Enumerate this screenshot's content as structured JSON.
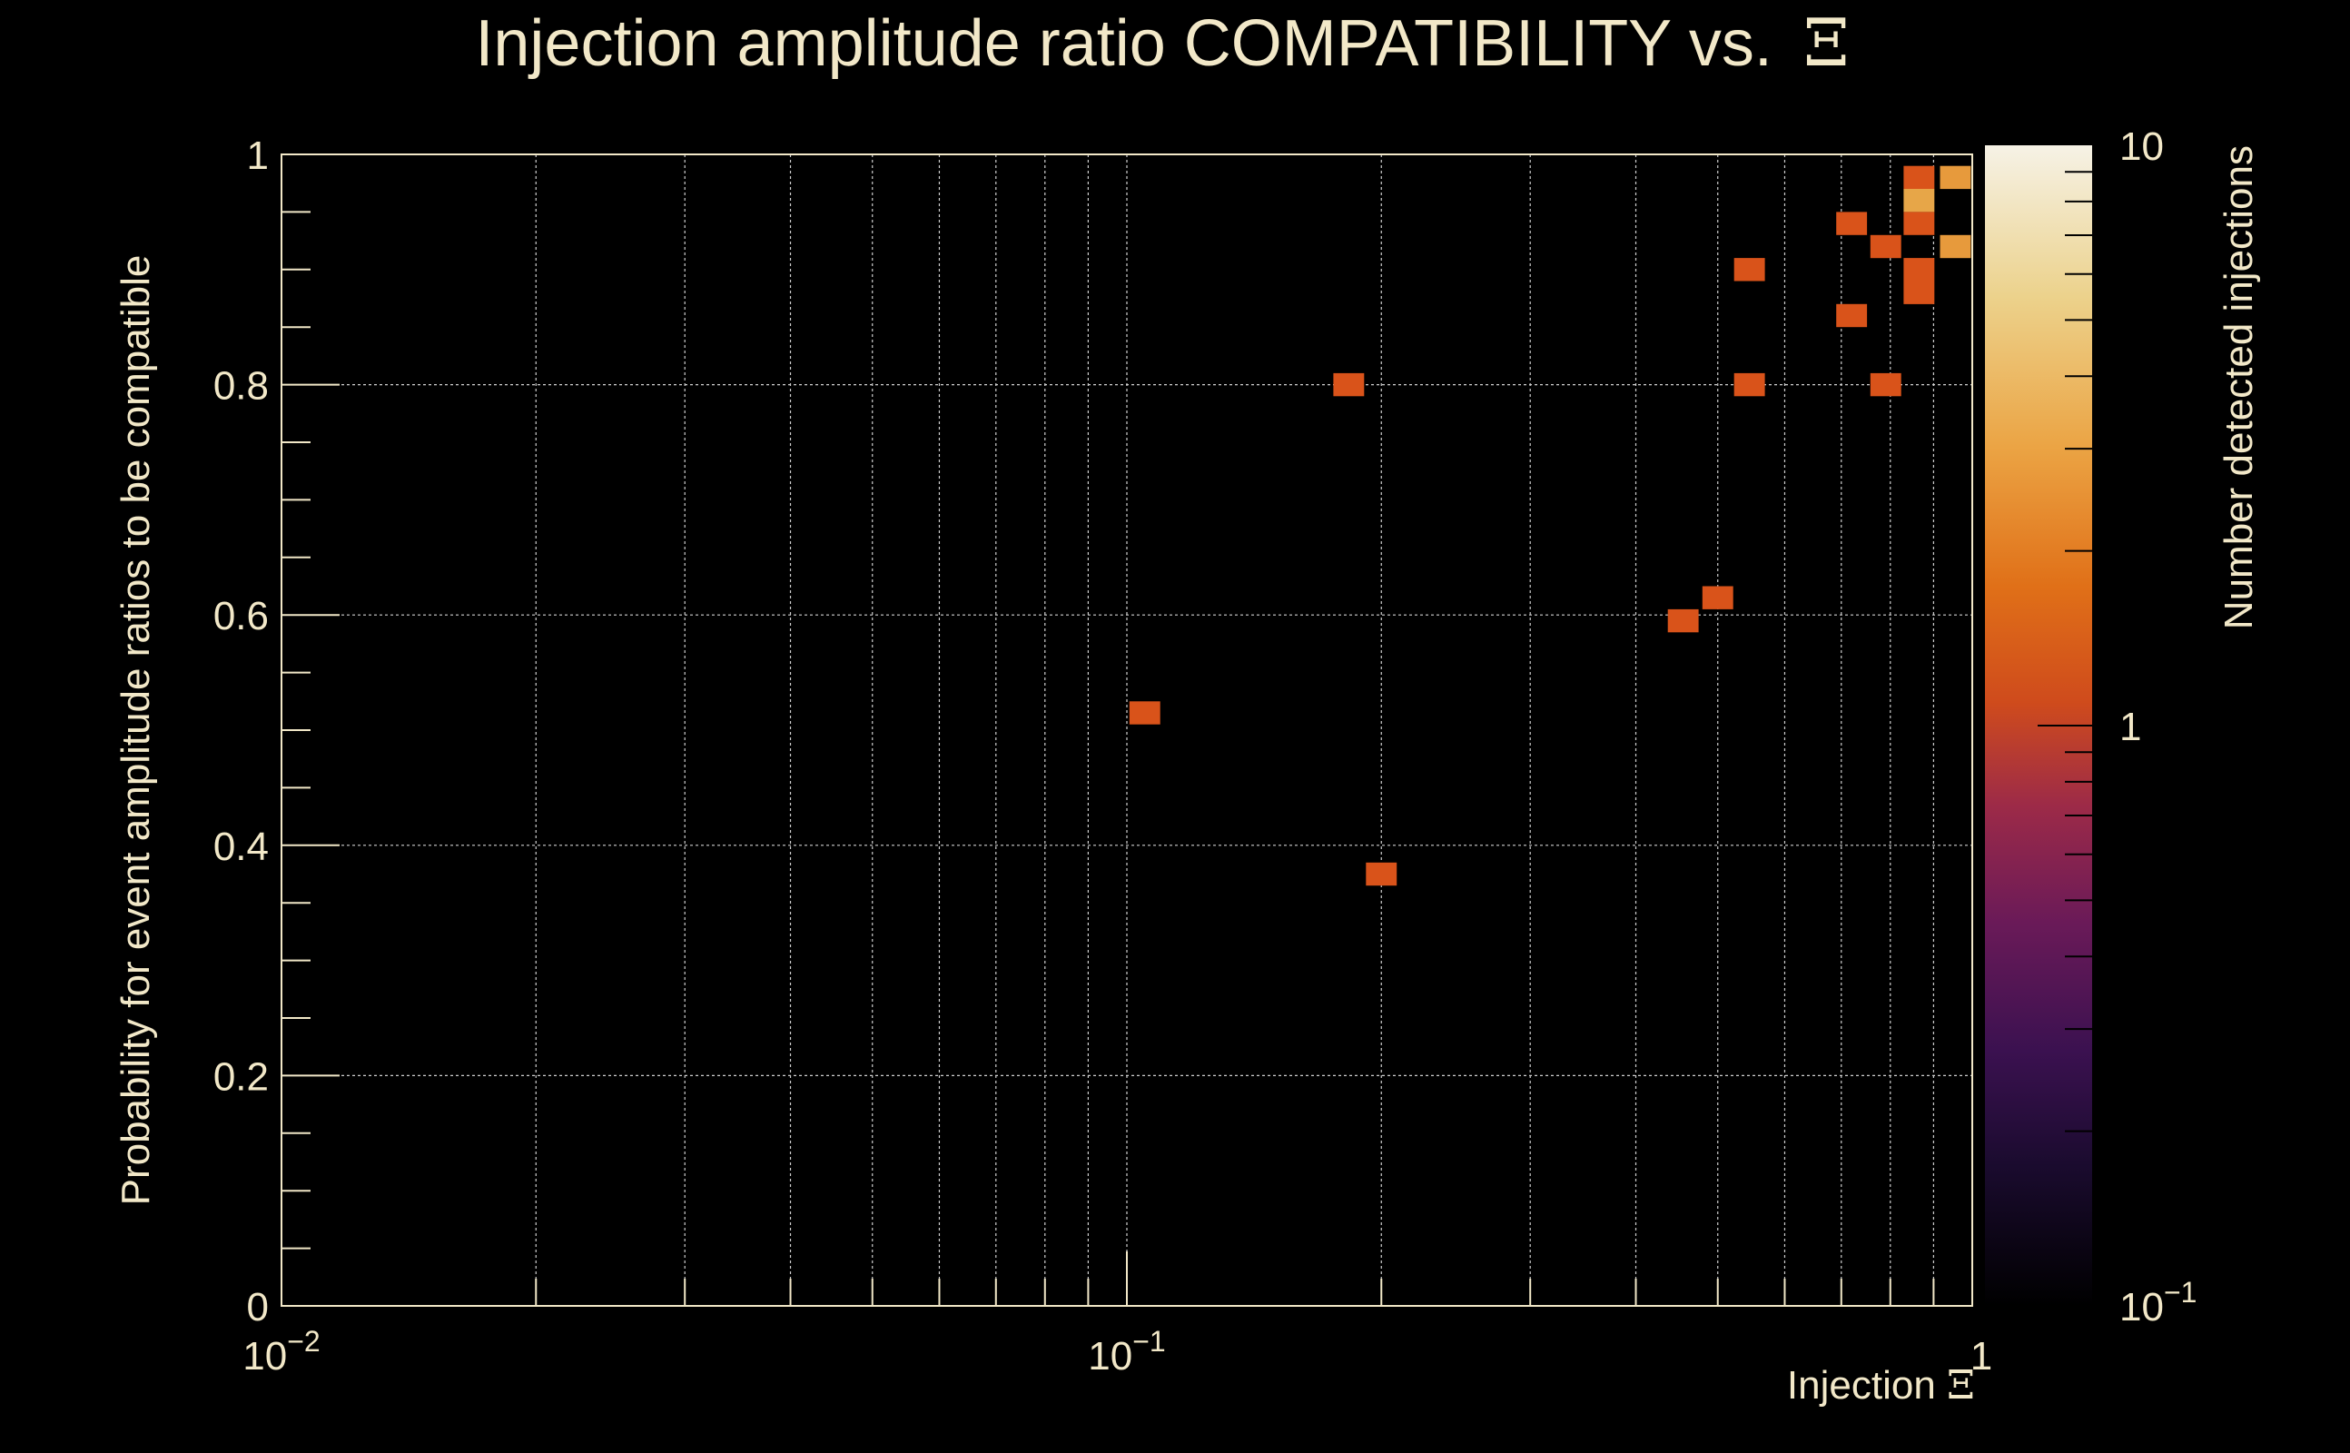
{
  "chart_data": {
    "type": "heatmap",
    "title": "Injection amplitude ratio COMPATIBILITY vs.",
    "title_symbol": "Ξ",
    "xlabel": "Injection",
    "xlabel_symbol": "Ξ",
    "ylabel": "Probability for event amplitude ratios to be compatible",
    "zlabel": "Number detected injections",
    "x_scale": "log",
    "xlim": [
      0.01,
      1
    ],
    "ylim": [
      0,
      1
    ],
    "zlim": [
      0.1,
      10
    ],
    "z_scale": "log",
    "grid": true,
    "x_ticks": [
      {
        "base": "10",
        "exp": "−2"
      },
      {
        "base": "10",
        "exp": "−1"
      },
      {
        "base": "1",
        "exp": ""
      }
    ],
    "y_ticks": [
      "0",
      "0.2",
      "0.4",
      "0.6",
      "0.8",
      "1"
    ],
    "z_ticks": [
      {
        "base": "10",
        "exp": ""
      },
      {
        "base": "1",
        "exp": ""
      },
      {
        "base": "10",
        "exp": "−1"
      }
    ],
    "colormap": [
      "#000000",
      "#1a0b2e",
      "#3b1150",
      "#6a1a58",
      "#9c2a48",
      "#cf4b1c",
      "#e8761a",
      "#eba444",
      "#ecd28c",
      "#f6f2e6"
    ],
    "bins_x_count": 55,
    "bins_y_count": 50,
    "cells": [
      {
        "x": 0.105,
        "y": 0.515,
        "count": 1
      },
      {
        "x": 0.183,
        "y": 0.8,
        "count": 1
      },
      {
        "x": 0.2,
        "y": 0.375,
        "count": 1
      },
      {
        "x": 0.455,
        "y": 0.595,
        "count": 1
      },
      {
        "x": 0.5,
        "y": 0.615,
        "count": 1
      },
      {
        "x": 0.545,
        "y": 0.9,
        "count": 1
      },
      {
        "x": 0.545,
        "y": 0.8,
        "count": 1
      },
      {
        "x": 0.72,
        "y": 0.94,
        "count": 1
      },
      {
        "x": 0.72,
        "y": 0.86,
        "count": 1
      },
      {
        "x": 0.79,
        "y": 0.92,
        "count": 1
      },
      {
        "x": 0.79,
        "y": 0.8,
        "count": 1
      },
      {
        "x": 0.865,
        "y": 0.98,
        "count": 1
      },
      {
        "x": 0.865,
        "y": 0.96,
        "count": 4
      },
      {
        "x": 0.865,
        "y": 0.94,
        "count": 1
      },
      {
        "x": 0.865,
        "y": 0.9,
        "count": 1
      },
      {
        "x": 0.865,
        "y": 0.88,
        "count": 1
      },
      {
        "x": 0.955,
        "y": 0.98,
        "count": 3
      },
      {
        "x": 0.955,
        "y": 0.92,
        "count": 3
      }
    ]
  }
}
